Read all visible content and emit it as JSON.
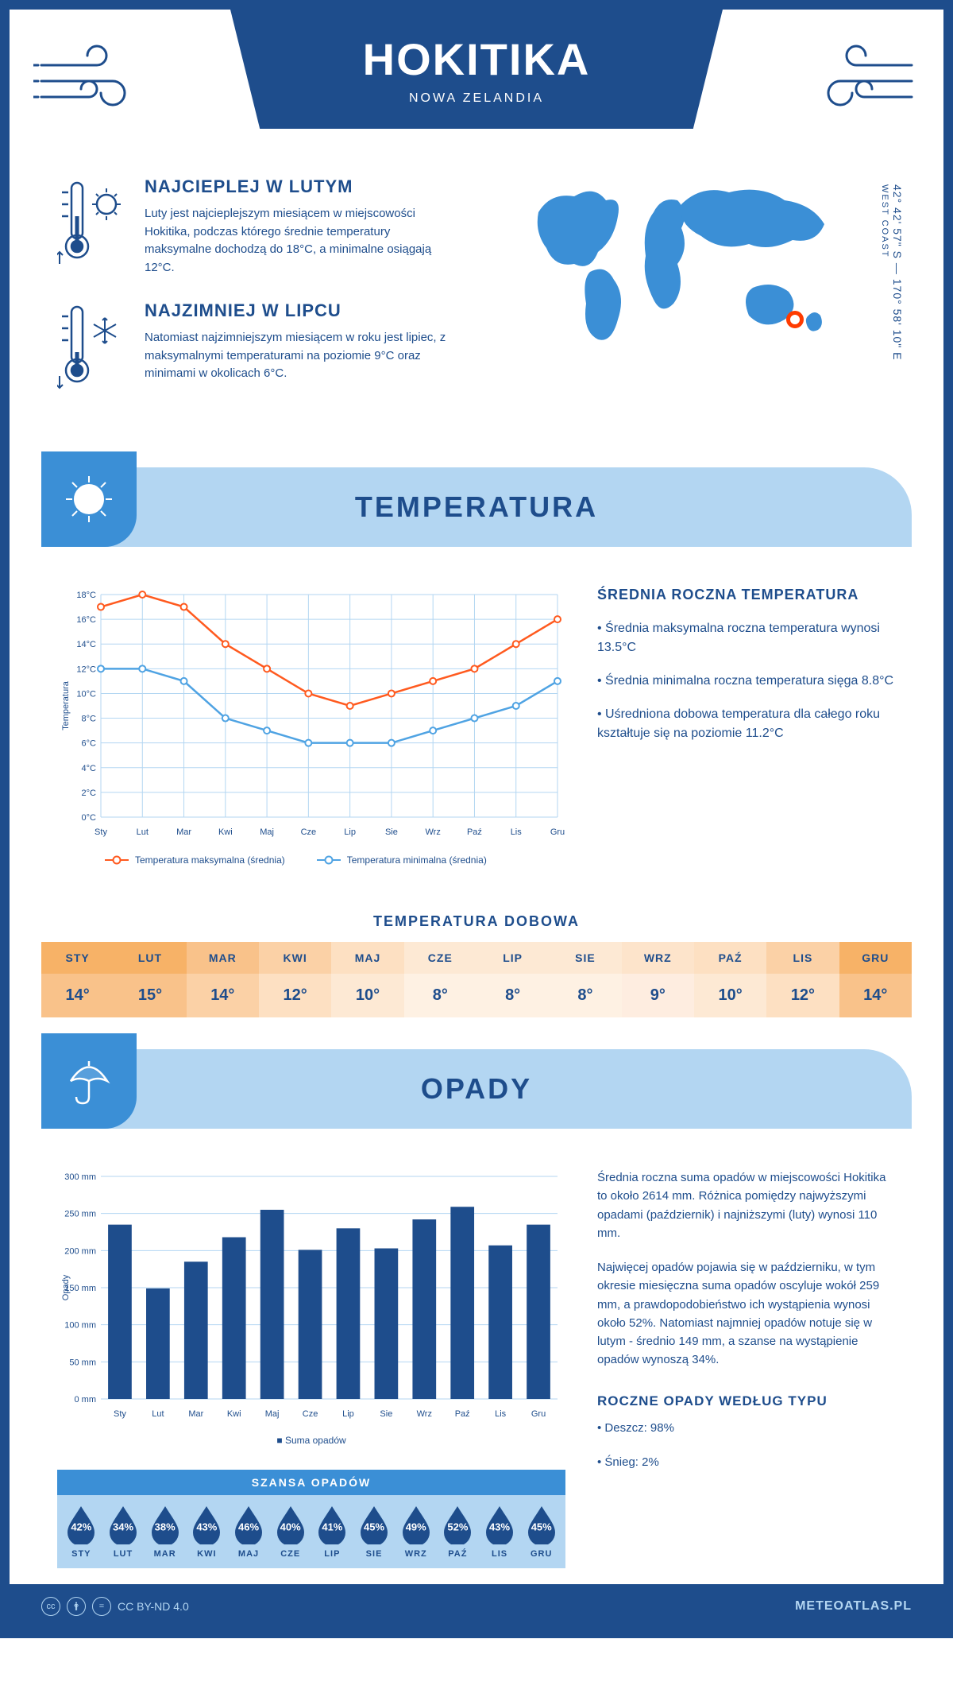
{
  "header": {
    "city": "HOKITIKA",
    "country": "NOWA ZELANDIA"
  },
  "coords": {
    "lat": "42° 42' 57\" S",
    "lon": "170° 58' 10\" E",
    "region": "WEST COAST"
  },
  "marker": {
    "left_pct": 82,
    "top_pct": 82
  },
  "facts": {
    "warm": {
      "title": "NAJCIEPLEJ W LUTYM",
      "text": "Luty jest najcieplejszym miesiącem w miejscowości Hokitika, podczas którego średnie temperatury maksymalne dochodzą do 18°C, a minimalne osiągają 12°C."
    },
    "cold": {
      "title": "NAJZIMNIEJ W LIPCU",
      "text": "Natomiast najzimniejszym miesiącem w roku jest lipiec, z maksymalnymi temperaturami na poziomie 9°C oraz minimami w okolicach 6°C."
    }
  },
  "sections": {
    "temp": "TEMPERATURA",
    "precip": "OPADY"
  },
  "months": [
    "Sty",
    "Lut",
    "Mar",
    "Kwi",
    "Maj",
    "Cze",
    "Lip",
    "Sie",
    "Wrz",
    "Paź",
    "Lis",
    "Gru"
  ],
  "months_upper": [
    "STY",
    "LUT",
    "MAR",
    "KWI",
    "MAJ",
    "CZE",
    "LIP",
    "SIE",
    "WRZ",
    "PAŹ",
    "LIS",
    "GRU"
  ],
  "temp_chart": {
    "type": "line",
    "ylabel": "Temperatura",
    "y_ticks": [
      0,
      2,
      4,
      6,
      8,
      10,
      12,
      14,
      16,
      18
    ],
    "y_labels": [
      "0°C",
      "2°C",
      "4°C",
      "6°C",
      "8°C",
      "10°C",
      "12°C",
      "14°C",
      "16°C",
      "18°C"
    ],
    "max_series": [
      17,
      18,
      17,
      14,
      12,
      10,
      9,
      10,
      11,
      12,
      14,
      16
    ],
    "min_series": [
      12,
      12,
      11,
      8,
      7,
      6,
      6,
      6,
      7,
      8,
      9,
      11
    ],
    "max_color": "#ff5a1f",
    "min_color": "#4fa3e3",
    "grid_color": "#b3d6f2",
    "ymin": 0,
    "ymax": 18,
    "legend_max": "Temperatura maksymalna (średnia)",
    "legend_min": "Temperatura minimalna (średnia)"
  },
  "temp_info": {
    "title": "ŚREDNIA ROCZNA TEMPERATURA",
    "b1": "• Średnia maksymalna roczna temperatura wynosi 13.5°C",
    "b2": "• Średnia minimalna roczna temperatura sięga 8.8°C",
    "b3": "• Uśredniona dobowa temperatura dla całego roku kształtuje się na poziomie 11.2°C"
  },
  "daily": {
    "title": "TEMPERATURA DOBOWA",
    "values": [
      "14°",
      "15°",
      "14°",
      "12°",
      "10°",
      "8°",
      "8°",
      "8°",
      "9°",
      "10°",
      "12°",
      "14°"
    ],
    "hdr_colors": [
      "#f7b267",
      "#f7b267",
      "#f9c28a",
      "#fbd1a6",
      "#fde0c2",
      "#fde9d4",
      "#fde9d4",
      "#fde9d4",
      "#fde4cb",
      "#fde0c2",
      "#fbd1a6",
      "#f7b267"
    ],
    "val_colors": [
      "#f9c28a",
      "#f9c28a",
      "#fbd1a6",
      "#fde0c2",
      "#fde9d4",
      "#fef1e3",
      "#fef1e3",
      "#fef1e3",
      "#feede0",
      "#fde9d4",
      "#fde0c2",
      "#f9c28a"
    ]
  },
  "precip_chart": {
    "type": "bar",
    "ylabel": "Opady",
    "y_ticks": [
      0,
      50,
      100,
      150,
      200,
      250,
      300
    ],
    "y_labels": [
      "0 mm",
      "50 mm",
      "100 mm",
      "150 mm",
      "200 mm",
      "250 mm",
      "300 mm"
    ],
    "values": [
      235,
      149,
      185,
      218,
      255,
      201,
      230,
      203,
      242,
      259,
      207,
      235
    ],
    "bar_color": "#1e4d8c",
    "ymin": 0,
    "ymax": 300,
    "legend": "Suma opadów"
  },
  "precip_info": {
    "p1": "Średnia roczna suma opadów w miejscowości Hokitika to około 2614 mm. Różnica pomiędzy najwyższymi opadami (październik) i najniższymi (luty) wynosi 110 mm.",
    "p2": "Najwięcej opadów pojawia się w październiku, w tym okresie miesięczna suma opadów oscyluje wokół 259 mm, a prawdopodobieństwo ich wystąpienia wynosi około 52%. Natomiast najmniej opadów notuje się w lutym - średnio 149 mm, a szanse na wystąpienie opadów wynoszą 34%.",
    "type_title": "ROCZNE OPADY WEDŁUG TYPU",
    "rain": "• Deszcz: 98%",
    "snow": "• Śnieg: 2%"
  },
  "chance": {
    "title": "SZANSA OPADÓW",
    "values": [
      "42%",
      "34%",
      "38%",
      "43%",
      "46%",
      "40%",
      "41%",
      "45%",
      "49%",
      "52%",
      "43%",
      "45%"
    ]
  },
  "footer": {
    "license": "CC BY-ND 4.0",
    "site": "METEOATLAS.PL"
  }
}
